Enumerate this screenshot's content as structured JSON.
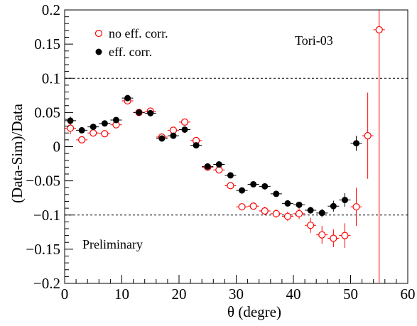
{
  "chart_data": {
    "type": "scatter",
    "xlabel": "θ (degre)",
    "ylabel": "(Data-Sim)/Data",
    "xlim": [
      0,
      60
    ],
    "ylim": [
      -0.2,
      0.2
    ],
    "x_ticks": [
      0,
      10,
      20,
      30,
      40,
      50,
      60
    ],
    "y_ticks": [
      -0.2,
      -0.15,
      -0.1,
      -0.05,
      0,
      0.05,
      0.1,
      0.15,
      0.2
    ],
    "x_tick_labels": [
      "0",
      "10",
      "20",
      "30",
      "40",
      "50",
      "60"
    ],
    "y_tick_labels": [
      "−0.2",
      "−0.15",
      "−0.1",
      "−0.05",
      "0",
      "0.05",
      "0.1",
      "0.15",
      "0.2"
    ],
    "reference_lines": [
      0.1,
      -0.1
    ],
    "grid": false,
    "legend_position": "top-left",
    "annotations": {
      "tag": "Tori-03",
      "status": "Preliminary"
    },
    "series": [
      {
        "name": "no eff. corr.",
        "color": "#ff0000",
        "marker": "open-circle",
        "points": [
          {
            "x": 1,
            "y": 0.027,
            "yerr": 0.009
          },
          {
            "x": 3,
            "y": 0.01,
            "yerr": 0.005
          },
          {
            "x": 5,
            "y": 0.02,
            "yerr": 0.004
          },
          {
            "x": 7,
            "y": 0.019,
            "yerr": 0.004
          },
          {
            "x": 9,
            "y": 0.032,
            "yerr": 0.004
          },
          {
            "x": 11,
            "y": 0.067,
            "yerr": 0.004
          },
          {
            "x": 13,
            "y": 0.05,
            "yerr": 0.004
          },
          {
            "x": 15,
            "y": 0.052,
            "yerr": 0.004
          },
          {
            "x": 17,
            "y": 0.014,
            "yerr": 0.004
          },
          {
            "x": 19,
            "y": 0.024,
            "yerr": 0.004
          },
          {
            "x": 21,
            "y": 0.036,
            "yerr": 0.004
          },
          {
            "x": 23,
            "y": 0.009,
            "yerr": 0.004
          },
          {
            "x": 25,
            "y": -0.03,
            "yerr": 0.004
          },
          {
            "x": 27,
            "y": -0.034,
            "yerr": 0.004
          },
          {
            "x": 29,
            "y": -0.057,
            "yerr": 0.004
          },
          {
            "x": 31,
            "y": -0.088,
            "yerr": 0.005
          },
          {
            "x": 33,
            "y": -0.087,
            "yerr": 0.005
          },
          {
            "x": 35,
            "y": -0.094,
            "yerr": 0.006
          },
          {
            "x": 37,
            "y": -0.098,
            "yerr": 0.006
          },
          {
            "x": 39,
            "y": -0.102,
            "yerr": 0.007
          },
          {
            "x": 41,
            "y": -0.098,
            "yerr": 0.008
          },
          {
            "x": 43,
            "y": -0.115,
            "yerr": 0.011
          },
          {
            "x": 45,
            "y": -0.129,
            "yerr": 0.013
          },
          {
            "x": 47,
            "y": -0.134,
            "yerr": 0.013
          },
          {
            "x": 49,
            "y": -0.13,
            "yerr": 0.018
          },
          {
            "x": 51,
            "y": -0.088,
            "yerr": 0.028
          },
          {
            "x": 53,
            "y": 0.016,
            "yerr": 0.063
          },
          {
            "x": 55,
            "y": 0.171,
            "yerr": 0.37
          }
        ]
      },
      {
        "name": "eff. corr.",
        "color": "#000000",
        "marker": "filled-circle",
        "points": [
          {
            "x": 1,
            "y": 0.038,
            "yerr": 0.006
          },
          {
            "x": 3,
            "y": 0.024,
            "yerr": 0.004
          },
          {
            "x": 5,
            "y": 0.029,
            "yerr": 0.003
          },
          {
            "x": 7,
            "y": 0.034,
            "yerr": 0.003
          },
          {
            "x": 9,
            "y": 0.039,
            "yerr": 0.003
          },
          {
            "x": 11,
            "y": 0.071,
            "yerr": 0.003
          },
          {
            "x": 13,
            "y": 0.05,
            "yerr": 0.003
          },
          {
            "x": 15,
            "y": 0.049,
            "yerr": 0.003
          },
          {
            "x": 17,
            "y": 0.012,
            "yerr": 0.003
          },
          {
            "x": 19,
            "y": 0.016,
            "yerr": 0.003
          },
          {
            "x": 21,
            "y": 0.025,
            "yerr": 0.003
          },
          {
            "x": 23,
            "y": 0.002,
            "yerr": 0.003
          },
          {
            "x": 25,
            "y": -0.029,
            "yerr": 0.003
          },
          {
            "x": 27,
            "y": -0.026,
            "yerr": 0.003
          },
          {
            "x": 29,
            "y": -0.042,
            "yerr": 0.003
          },
          {
            "x": 31,
            "y": -0.064,
            "yerr": 0.003
          },
          {
            "x": 33,
            "y": -0.055,
            "yerr": 0.003
          },
          {
            "x": 35,
            "y": -0.058,
            "yerr": 0.003
          },
          {
            "x": 37,
            "y": -0.069,
            "yerr": 0.003
          },
          {
            "x": 39,
            "y": -0.083,
            "yerr": 0.004
          },
          {
            "x": 41,
            "y": -0.085,
            "yerr": 0.004
          },
          {
            "x": 43,
            "y": -0.093,
            "yerr": 0.005
          },
          {
            "x": 45,
            "y": -0.097,
            "yerr": 0.006
          },
          {
            "x": 47,
            "y": -0.087,
            "yerr": 0.008
          },
          {
            "x": 49,
            "y": -0.078,
            "yerr": 0.01
          },
          {
            "x": 51,
            "y": 0.005,
            "yerr": 0.011
          }
        ]
      }
    ]
  }
}
